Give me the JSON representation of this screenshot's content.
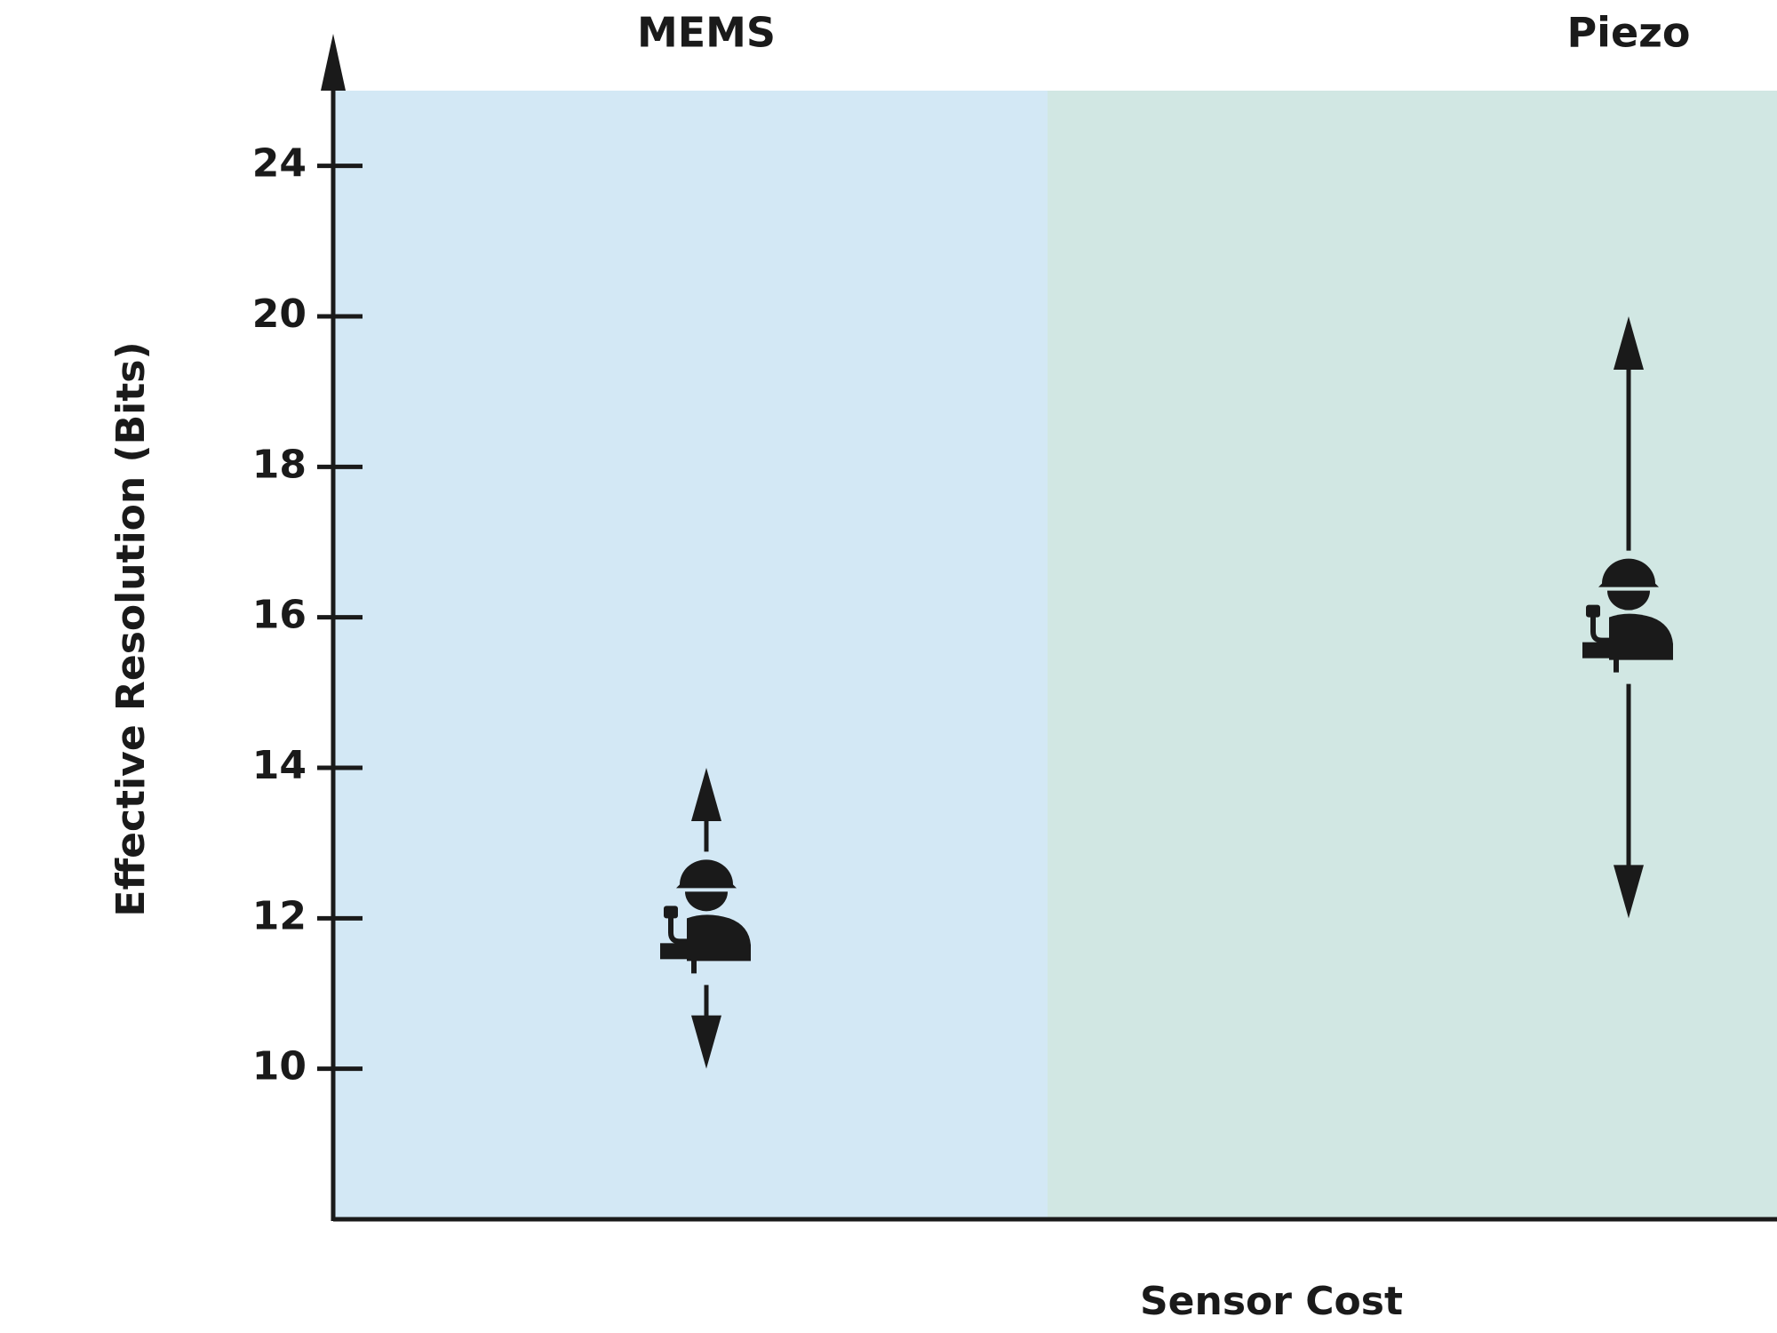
{
  "chart_data": {
    "type": "range",
    "y_label": "Effective Resolution (Bits)",
    "x_label": "Sensor Cost",
    "ylim": [
      8,
      26
    ],
    "yticks": [
      10,
      12,
      14,
      16,
      18,
      20,
      24
    ],
    "series": [
      {
        "name": "MEMS",
        "color": "#d3e8f5",
        "low": 10,
        "mid": 12,
        "high": 14
      },
      {
        "name": "Piezo",
        "color": "#d1e7e3",
        "low": 12,
        "mid": 16,
        "high": 20
      }
    ]
  }
}
